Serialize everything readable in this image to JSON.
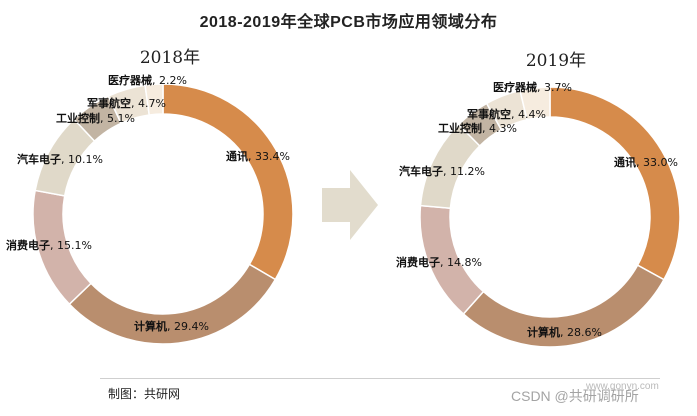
{
  "title": "2018-2019年全球PCB市场应用领域分布",
  "source": "制图：共研网",
  "watermark_url": "www.gonyn.com",
  "watermark": "CSDN @共研调研所",
  "colors": {
    "通讯": "#d68b4b",
    "计算机": "#b98e6e",
    "消费电子": "#d2b3aa",
    "汽车电子": "#e0d9c9",
    "工业控制": "#c2b4a3",
    "军事航空": "#ece3d5",
    "医疗器械": "#f6ecdf",
    "arrow": "#e2dccd"
  },
  "chart_data": [
    {
      "type": "pie",
      "title": "2018年",
      "categories": [
        "通讯",
        "计算机",
        "消费电子",
        "汽车电子",
        "工业控制",
        "军事航空",
        "医疗器械"
      ],
      "values": [
        33.4,
        29.4,
        15.1,
        10.1,
        5.1,
        4.7,
        2.2
      ],
      "value_labels": [
        "33.4%",
        "29.4%",
        "15.1%",
        "10.1%",
        "5.1%",
        "4.7%",
        "2.2%"
      ]
    },
    {
      "type": "pie",
      "title": "2019年",
      "categories": [
        "通讯",
        "计算机",
        "消费电子",
        "汽车电子",
        "工业控制",
        "军事航空",
        "医疗器械"
      ],
      "values": [
        33.0,
        28.6,
        14.8,
        11.2,
        4.3,
        4.4,
        3.7
      ],
      "value_labels": [
        "33.0%",
        "28.6%",
        "14.8%",
        "11.2%",
        "4.3%",
        "4.4%",
        "3.7%"
      ]
    }
  ]
}
